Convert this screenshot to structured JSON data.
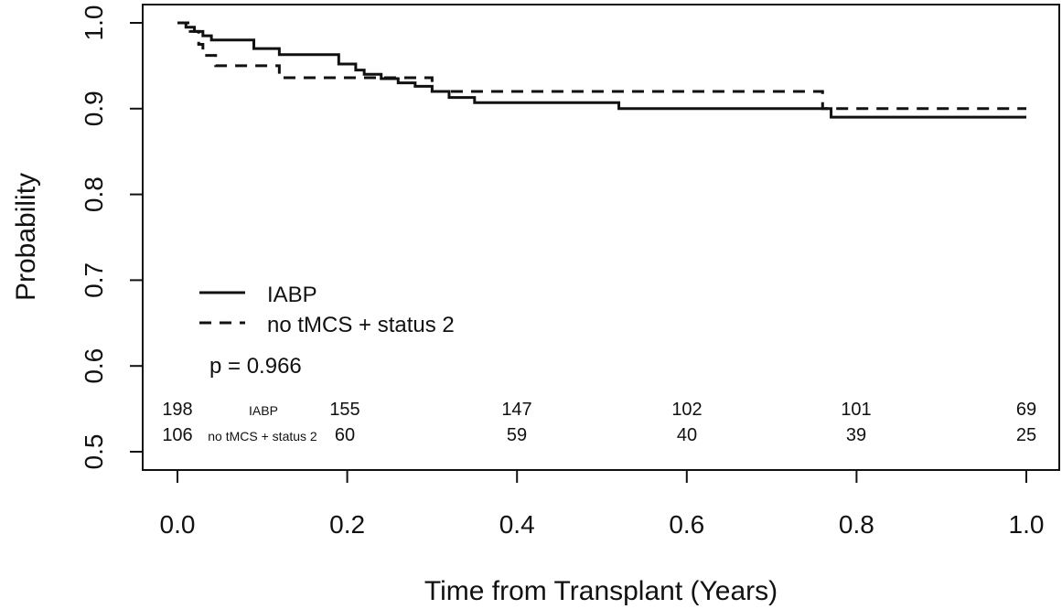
{
  "chart_data": {
    "type": "line",
    "title": "",
    "xlabel": "Time from Transplant (Years)",
    "ylabel": "Probability",
    "xlim": [
      0.0,
      1.0
    ],
    "ylim": [
      0.5,
      1.0
    ],
    "xticks": [
      "0.0",
      "0.2",
      "0.4",
      "0.6",
      "0.8",
      "1.0"
    ],
    "yticks": [
      "0.5",
      "0.6",
      "0.7",
      "0.8",
      "0.9",
      "1.0"
    ],
    "grid": false,
    "legend_position": "bottom-left",
    "series": [
      {
        "name": "IABP",
        "style": "solid",
        "color": "#111111",
        "steps": [
          [
            0.0,
            1.0
          ],
          [
            0.01,
            0.995
          ],
          [
            0.02,
            0.99
          ],
          [
            0.03,
            0.985
          ],
          [
            0.04,
            0.98
          ],
          [
            0.09,
            0.97
          ],
          [
            0.12,
            0.963
          ],
          [
            0.19,
            0.952
          ],
          [
            0.21,
            0.945
          ],
          [
            0.22,
            0.94
          ],
          [
            0.24,
            0.935
          ],
          [
            0.26,
            0.93
          ],
          [
            0.28,
            0.926
          ],
          [
            0.3,
            0.92
          ],
          [
            0.32,
            0.913
          ],
          [
            0.35,
            0.907
          ],
          [
            0.52,
            0.9
          ],
          [
            0.77,
            0.89
          ],
          [
            1.0,
            0.89
          ]
        ]
      },
      {
        "name": "no tMCS + status 2",
        "style": "dashed",
        "color": "#111111",
        "steps": [
          [
            0.0,
            1.0
          ],
          [
            0.015,
            0.99
          ],
          [
            0.025,
            0.975
          ],
          [
            0.03,
            0.962
          ],
          [
            0.045,
            0.95
          ],
          [
            0.12,
            0.936
          ],
          [
            0.3,
            0.92
          ],
          [
            0.76,
            0.9
          ],
          [
            1.0,
            0.9
          ]
        ]
      }
    ],
    "annotation": "p = 0.966",
    "risk_table": {
      "rows": [
        {
          "label": "IABP",
          "counts": [
            "198",
            "155",
            "147",
            "102",
            "101",
            "69"
          ]
        },
        {
          "label": "no tMCS + status 2",
          "counts": [
            "106",
            "60",
            "59",
            "40",
            "39",
            "25"
          ]
        }
      ]
    }
  }
}
